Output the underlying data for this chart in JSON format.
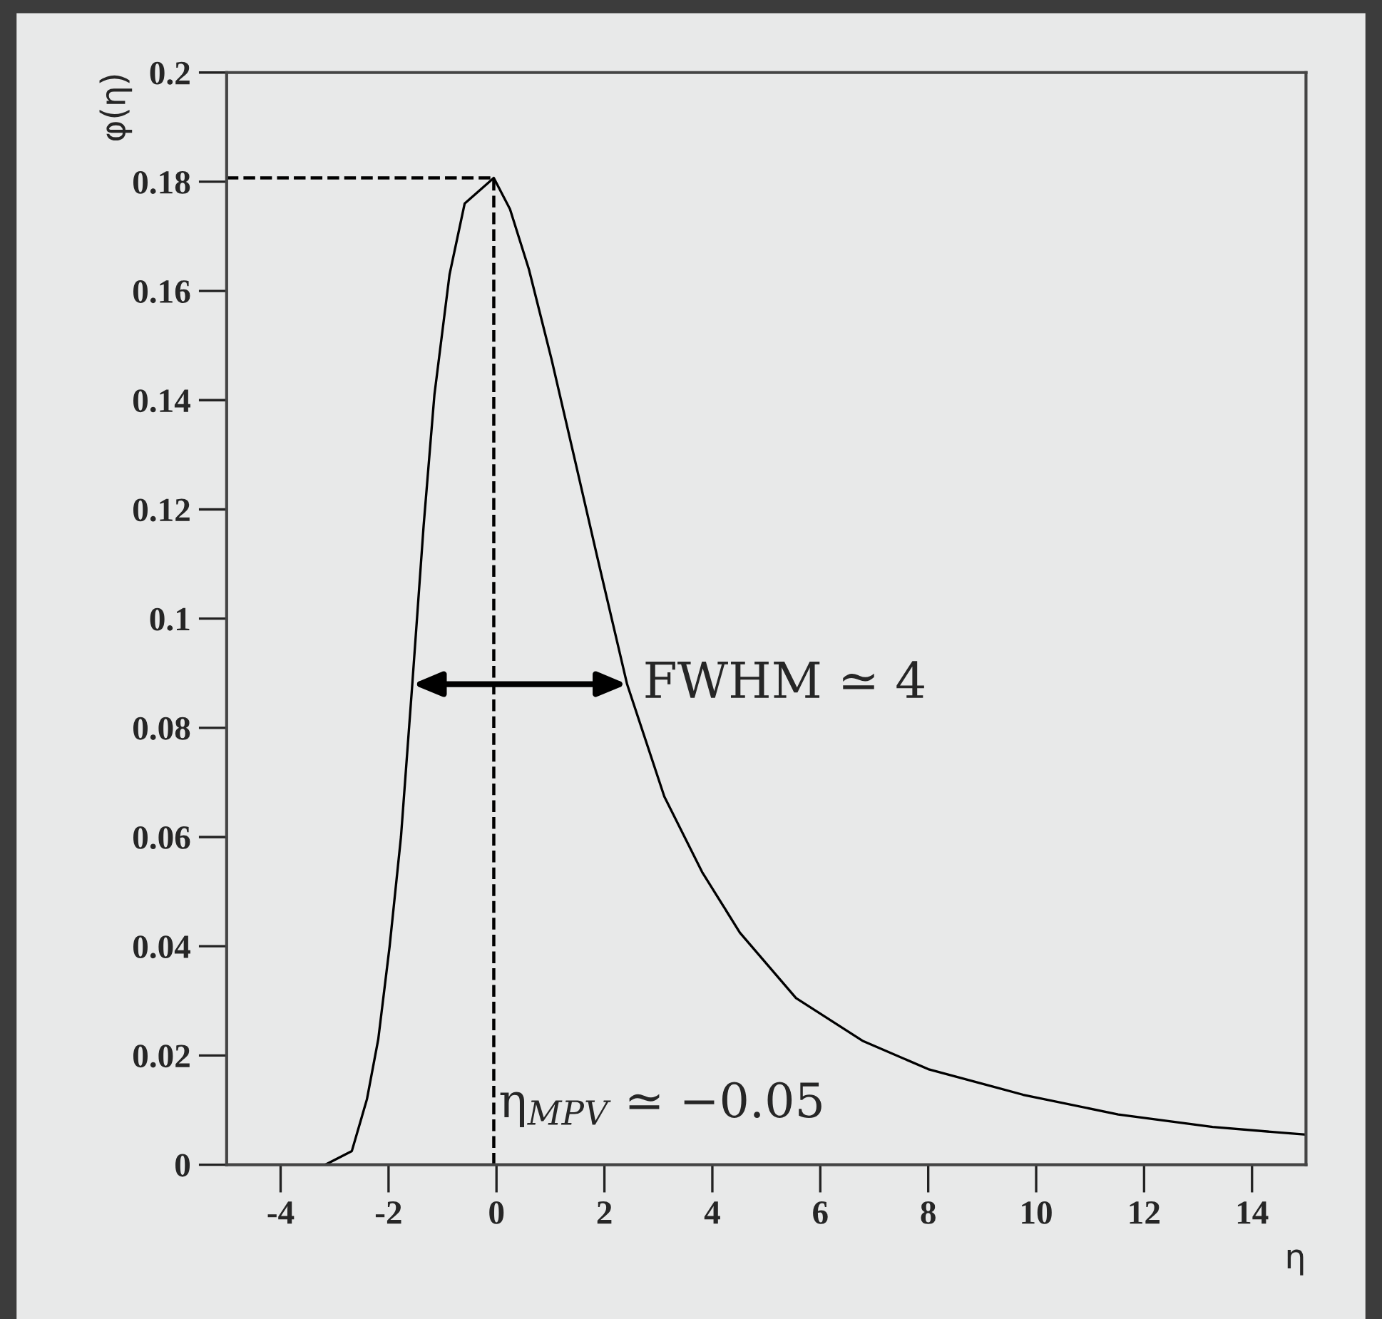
{
  "chart_data": {
    "type": "line",
    "xlabel": "η",
    "ylabel": "φ(η)",
    "series": [
      {
        "color": "#000000",
        "line_style": "solid",
        "x": [
          -5,
          -4,
          -3.3,
          -3.17,
          -2.68,
          -2.4,
          -2.19,
          -1.98,
          -1.77,
          -1.56,
          -1.35,
          -1.15,
          -0.87,
          -0.59,
          -0.05,
          0.25,
          0.6,
          1.02,
          1.44,
          1.86,
          2.42,
          3.11,
          3.81,
          4.51,
          5.55,
          6.78,
          8.0,
          9.76,
          11.52,
          13.27,
          15
        ],
        "values": [
          0,
          0,
          0,
          0,
          0.0025,
          0.012,
          0.023,
          0.04,
          0.06,
          0.088,
          0.117,
          0.141,
          0.163,
          0.176,
          0.1807,
          0.175,
          0.164,
          0.1475,
          0.1296,
          0.1116,
          0.088,
          0.0674,
          0.0536,
          0.0425,
          0.0305,
          0.0227,
          0.0175,
          0.0128,
          0.0092,
          0.0069,
          0.0055
        ]
      },
      {
        "color": "#000000",
        "line_style": "dashed",
        "x": [
          -5,
          -0.05
        ],
        "values": [
          0.1807,
          0.1807
        ]
      },
      {
        "color": "#000000",
        "line_style": "dashed",
        "x": [
          -0.05,
          -0.05
        ],
        "values": [
          0,
          0.1807
        ]
      }
    ],
    "annotations": [
      {
        "text": "FWHM ≃ 4",
        "x": 2.42,
        "y": 0.088
      },
      "η$_{MPV}$ ≃ −0.05"
    ],
    "xlim": [
      -5,
      15
    ],
    "ylim": [
      0,
      0.2
    ],
    "xticks": [
      -4,
      -2,
      0,
      2,
      4,
      6,
      8,
      10,
      12,
      14
    ],
    "yticks": [
      0,
      0.02,
      0.04,
      0.06,
      0.08,
      0.1,
      0.12,
      0.14,
      0.16,
      0.18,
      0.2
    ],
    "grid": false,
    "legend": false
  }
}
